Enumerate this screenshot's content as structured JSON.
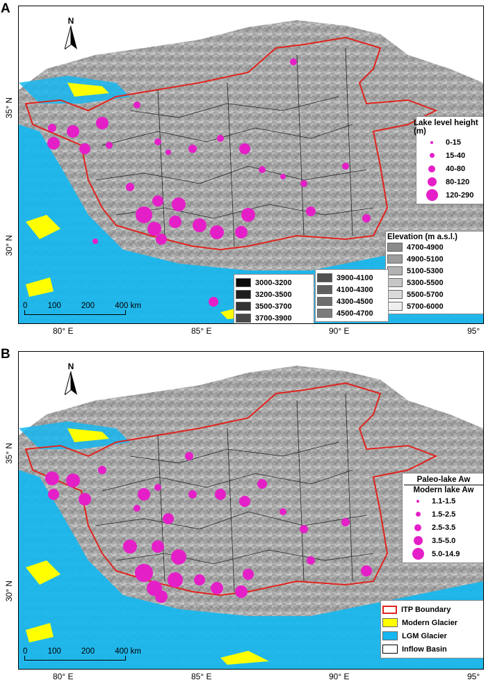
{
  "colors": {
    "itp_boundary": "#e1231d",
    "modern_glacier": "#ffff00",
    "lgm_glacier": "#16b7ef",
    "lake_marker": "#e51fc8",
    "inflow_basin": "#000000"
  },
  "axes": {
    "lon_labels": [
      "80° E",
      "85° E",
      "90° E",
      "95°"
    ],
    "lat_labels": [
      "35° N",
      "30° N"
    ]
  },
  "panels": [
    {
      "letter": "A",
      "north": "N",
      "scale_ticks": [
        "0",
        "100",
        "200",
        "400 km"
      ],
      "legend_lake": {
        "title": "Lake level height (m)",
        "items": [
          {
            "label": "0-15",
            "size": 4
          },
          {
            "label": "15-40",
            "size": 7
          },
          {
            "label": "40-80",
            "size": 10
          },
          {
            "label": "80-120",
            "size": 13
          },
          {
            "label": "120-290",
            "size": 17
          }
        ]
      },
      "legend_elev_main": {
        "title": "Elevation (m a.s.l.)",
        "items": [
          {
            "label": "4700-4900",
            "color": "#8a8a8a"
          },
          {
            "label": "4900-5100",
            "color": "#9d9d9d"
          },
          {
            "label": "5100-5300",
            "color": "#b2b2b2"
          },
          {
            "label": "5300-5500",
            "color": "#c6c6c6"
          },
          {
            "label": "5500-5700",
            "color": "#dadada"
          },
          {
            "label": "5700-6000",
            "color": "#efefef"
          }
        ]
      },
      "legend_elev_low": {
        "items": [
          {
            "label": "3000-3200",
            "color": "#0a0a0a"
          },
          {
            "label": "3200-3500",
            "color": "#1f1f1f"
          },
          {
            "label": "3500-3700",
            "color": "#333333"
          },
          {
            "label": "3700-3900",
            "color": "#474747"
          }
        ]
      },
      "legend_elev_mid": {
        "items": [
          {
            "label": "3900-4100",
            "color": "#505050"
          },
          {
            "label": "4100-4300",
            "color": "#5f5f5f"
          },
          {
            "label": "4300-4500",
            "color": "#6e6e6e"
          },
          {
            "label": "4500-4700",
            "color": "#7c7c7c"
          }
        ]
      }
    },
    {
      "letter": "B",
      "north": "N",
      "scale_ticks": [
        "0",
        "100",
        "200",
        "400 km"
      ],
      "legend_ratio": {
        "numerator": "Paleo-lake Aw",
        "denominator": "Modern lake Aw",
        "items": [
          {
            "label": "1.1-1.5",
            "size": 4
          },
          {
            "label": "1.5-2.5",
            "size": 7
          },
          {
            "label": "2.5-3.5",
            "size": 10
          },
          {
            "label": "3.5-5.0",
            "size": 13
          },
          {
            "label": "5.0-14.9",
            "size": 17
          }
        ]
      },
      "legend_features": {
        "items": [
          {
            "label": "ITP Boundary",
            "key": "itp_boundary"
          },
          {
            "label": "Modern Glacier",
            "key": "modern_glacier"
          },
          {
            "label": "LGM Glacier",
            "key": "lgm_glacier"
          },
          {
            "label": "Inflow Basin",
            "key": "inflow_basin"
          }
        ]
      }
    }
  ]
}
